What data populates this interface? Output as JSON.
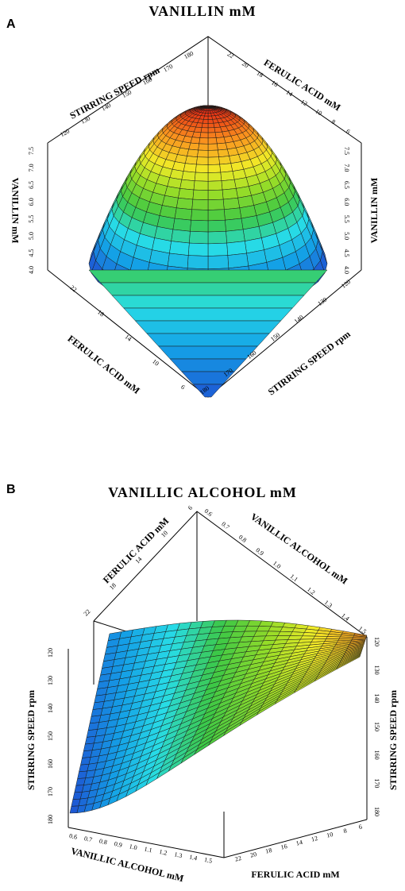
{
  "chart_data": [
    {
      "type": "surface3d",
      "panel_label": "A",
      "title": "VANILLIN mM",
      "axes": {
        "stirring_speed": {
          "label": "STIRRING SPEED rpm",
          "range": [
            120,
            180
          ]
        },
        "ferulic_acid": {
          "label": "FERULIC ACID mM",
          "range": [
            6,
            22
          ]
        },
        "vanillin": {
          "label": "VANILLIN mM",
          "range": [
            4.0,
            7.5
          ],
          "ticks": [
            "4.0",
            "4.5",
            "5.0",
            "5.5",
            "6.0",
            "6.5",
            "7.0",
            "7.5"
          ]
        }
      },
      "labels": {
        "top_left_axis": "STIRRING SPEED rpm",
        "top_right_axis": "FERULIC ACID mM",
        "left_z_axis": "VANILLIN mM",
        "right_z_axis": "VANILLIN mM",
        "bottom_left_axis": "FERULIC ACID mM",
        "bottom_right_axis": "STIRRING SPEED rpm"
      },
      "ticks": {
        "top_left": [
          "120",
          "130",
          "140",
          "150",
          "160",
          "170",
          "180"
        ],
        "top_right": [
          "22",
          "20",
          "18",
          "16",
          "14",
          "12",
          "10",
          "8",
          "6"
        ],
        "bottom_left": [
          "22",
          "18",
          "14",
          "10",
          "6"
        ],
        "bottom_right": [
          "180",
          "170",
          "160",
          "150",
          "140",
          "130",
          "120"
        ]
      },
      "surface": {
        "shape": "dome",
        "peak_value": 7.6,
        "color_scale": "blue-cyan-green-yellow-orange-red"
      }
    },
    {
      "type": "surface3d",
      "panel_label": "B",
      "title": "VANILLIC ALCOHOL mM",
      "axes": {
        "stirring_speed": {
          "label": "STIRRING SPEED rpm",
          "range": [
            120,
            180
          ]
        },
        "ferulic_acid": {
          "label": "FERULIC ACID mM",
          "range": [
            6,
            22
          ]
        },
        "vanillic_alcohol": {
          "label": "VANILLIC ALCOHOL mM",
          "range": [
            0.6,
            1.5
          ]
        }
      },
      "labels": {
        "top_left_axis": "FERULIC ACID mM",
        "top_right_axis": "VANILLIC ALCOHOL mM",
        "left_axis": "STIRRING SPEED rpm",
        "right_axis": "STIRRING SPEED rpm",
        "bottom_left_axis": "VANILLIC ALCOHOL mM",
        "bottom_right_axis": "FERULIC ACID mM"
      },
      "ticks": {
        "top_left": [
          "22",
          "18",
          "14",
          "10",
          "6"
        ],
        "top_right": [
          "0.6",
          "0.7",
          "0.8",
          "0.9",
          "1.0",
          "1.1",
          "1.2",
          "1.3",
          "1.4",
          "1.5"
        ],
        "left": [
          "120",
          "130",
          "140",
          "150",
          "160",
          "170",
          "180"
        ],
        "right": [
          "120",
          "130",
          "140",
          "150",
          "160",
          "170",
          "180"
        ],
        "bottom_left": [
          "0.6",
          "0.7",
          "0.8",
          "0.9",
          "1.0",
          "1.1",
          "1.2",
          "1.3",
          "1.4",
          "1.5"
        ],
        "bottom_right": [
          "22",
          "20",
          "18",
          "16",
          "14",
          "12",
          "10",
          "8",
          "6"
        ]
      },
      "surface": {
        "shape": "rising ramp",
        "color_scale": "blue-cyan-green-yellow-orange"
      }
    }
  ]
}
